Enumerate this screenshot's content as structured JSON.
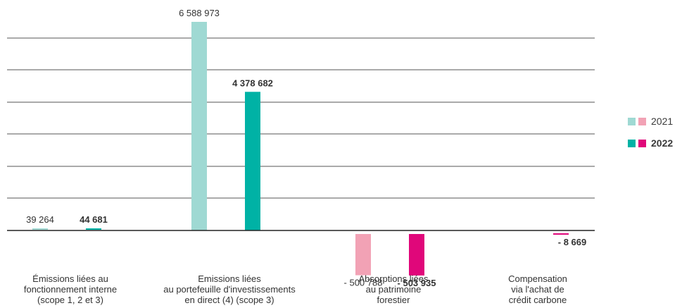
{
  "chart_data": {
    "type": "bar",
    "categories": [
      [
        "Émissions liées au",
        "fonctionnement interne",
        "(scope 1, 2 et 3)"
      ],
      [
        "Emissions liées",
        "au portefeuille d'investissements",
        "en direct (4) (scope 3)"
      ],
      [
        "Absorptions liées",
        "au patrimoine",
        "forestier"
      ],
      [
        "Compensation",
        "via l'achat de",
        "crédit carbone"
      ]
    ],
    "series": [
      {
        "name": "2021",
        "values": [
          39264,
          6588973,
          -500788,
          null
        ],
        "labels": [
          "39 264",
          "6 588 973",
          "- 500 788",
          ""
        ],
        "positive_color": "#9fd9d3",
        "negative_color": "#f2a2b5"
      },
      {
        "name": "2022",
        "values": [
          44681,
          4378682,
          -503935,
          -8669
        ],
        "labels": [
          "44 681",
          "4 378 682",
          "- 503 935",
          "- 8 669"
        ],
        "positive_color": "#00b2a5",
        "negative_color": "#e0077a"
      }
    ],
    "ylim": [
      -550000,
      7000000
    ],
    "grid": true,
    "legend_position": "right"
  },
  "legend": [
    {
      "label": "2021",
      "colors": [
        "#9fd9d3",
        "#f2a2b5"
      ],
      "bold": false
    },
    {
      "label": "2022",
      "colors": [
        "#00b2a5",
        "#e0077a"
      ],
      "bold": true
    }
  ]
}
